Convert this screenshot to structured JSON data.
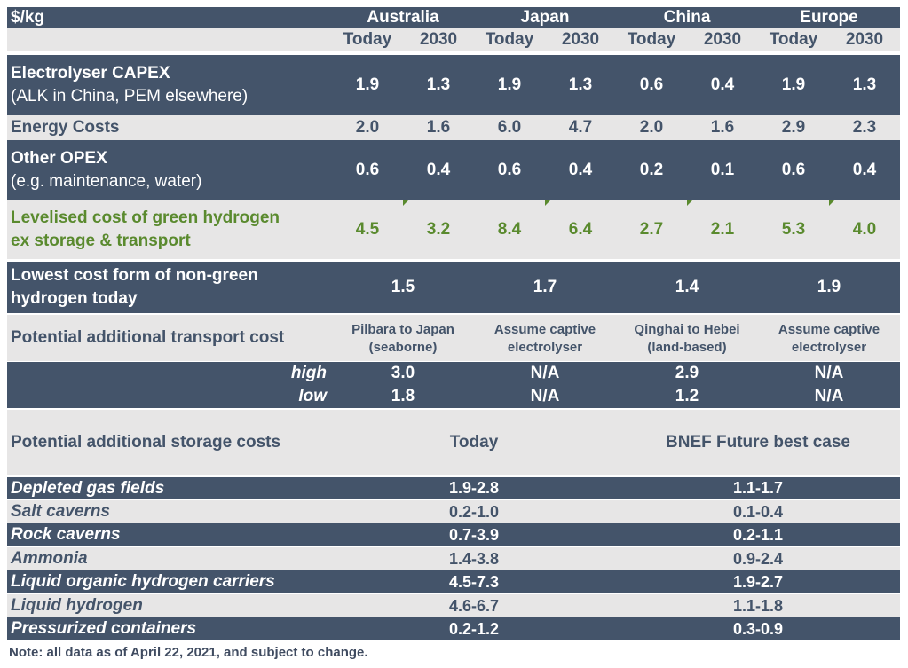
{
  "unit": "$/kg",
  "regions": [
    "Australia",
    "Japan",
    "China",
    "Europe"
  ],
  "periods": [
    "Today",
    "2030",
    "Today",
    "2030",
    "Today",
    "2030",
    "Today",
    "2030"
  ],
  "cost_rows": [
    {
      "label": "Electrolyser CAPEX",
      "sublabel": "(ALK in China, PEM elsewhere)",
      "values": [
        "1.9",
        "1.3",
        "1.9",
        "1.3",
        "0.6",
        "0.4",
        "1.9",
        "1.3"
      ]
    },
    {
      "label": "Energy Costs",
      "sublabel": "",
      "values": [
        "2.0",
        "1.6",
        "6.0",
        "4.7",
        "2.0",
        "1.6",
        "2.9",
        "2.3"
      ]
    },
    {
      "label": "Other OPEX",
      "sublabel": "(e.g. maintenance, water)",
      "values": [
        "0.6",
        "0.4",
        "0.6",
        "0.4",
        "0.2",
        "0.1",
        "0.6",
        "0.4"
      ]
    }
  ],
  "lcoh": {
    "label1": "Levelised cost of green hydrogen",
    "label2": "ex storage & transport",
    "values": [
      "4.5",
      "3.2",
      "8.4",
      "6.4",
      "2.7",
      "2.1",
      "5.3",
      "4.0"
    ]
  },
  "nongreen": {
    "label1": "Lowest cost form of non-green",
    "label2": "hydrogen today",
    "values": [
      "1.5",
      "1.7",
      "1.4",
      "1.9"
    ]
  },
  "transport": {
    "label": "Potential additional transport cost",
    "routes": [
      {
        "line1": "Pilbara to Japan",
        "line2": "(seaborne)"
      },
      {
        "line1": "Assume captive",
        "line2": "electrolyser"
      },
      {
        "line1": "Qinghai to Hebei",
        "line2": "(land-based)"
      },
      {
        "line1": "Assume captive",
        "line2": "electrolyser"
      }
    ],
    "high_label": "high",
    "low_label": "low",
    "high": [
      "3.0",
      "N/A",
      "2.9",
      "N/A"
    ],
    "low": [
      "1.8",
      "N/A",
      "1.2",
      "N/A"
    ]
  },
  "storage": {
    "label": "Potential additional storage costs",
    "col_today": "Today",
    "col_future": "BNEF Future best case",
    "rows": [
      {
        "name": "Depleted gas fields",
        "today": "1.9-2.8",
        "future": "1.1-1.7"
      },
      {
        "name": "Salt caverns",
        "today": "0.2-1.0",
        "future": "0.1-0.4"
      },
      {
        "name": "Rock caverns",
        "today": "0.7-3.9",
        "future": "0.2-1.1"
      },
      {
        "name": "Ammonia",
        "today": "1.4-3.8",
        "future": "0.9-2.4"
      },
      {
        "name": "Liquid organic hydrogen carriers",
        "today": "4.5-7.3",
        "future": "1.9-2.7"
      },
      {
        "name": "Liquid hydrogen",
        "today": "4.6-6.7",
        "future": "1.1-1.8"
      },
      {
        "name": "Pressurized containers",
        "today": "0.2-1.2",
        "future": "0.3-0.9"
      }
    ]
  },
  "note": "Note: all data as of April 22, 2021, and subject to change."
}
